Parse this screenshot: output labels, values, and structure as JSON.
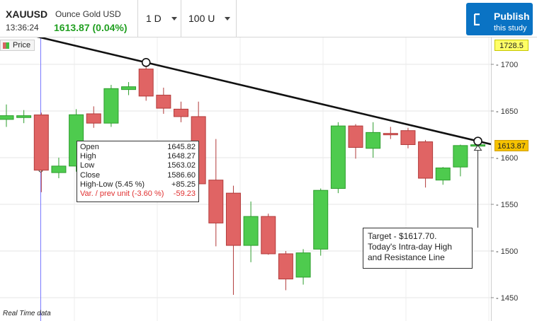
{
  "header": {
    "symbol": "XAUUSD",
    "instrument": "Ounce Gold USD",
    "time": "13:36:24",
    "price": "1613.87 (0.04%)",
    "price_color": "#22a022",
    "interval": "1 D",
    "units": "100 U",
    "publish": {
      "line1": "Publish",
      "line2": "this study",
      "color": "#0a73c4"
    }
  },
  "legend": {
    "label": "Price"
  },
  "footer": {
    "note": "Real Time data"
  },
  "price_tags": {
    "high": "1728.5",
    "last": "1613.87"
  },
  "ohlc": {
    "rows": [
      {
        "label": "Open",
        "value": "1645.82"
      },
      {
        "label": "High",
        "value": "1648.27"
      },
      {
        "label": "Low",
        "value": "1563.02"
      },
      {
        "label": "Close",
        "value": "1586.60"
      },
      {
        "label": "High-Low (5.45 %)",
        "value": "+85.25"
      },
      {
        "label": "Var. / prev unit (-3.60 %)",
        "value": "-59.23"
      }
    ]
  },
  "annotation": {
    "lines": [
      "Target - $1617.70.",
      "Today's Intra-day High",
      "and Resistance Line"
    ]
  },
  "chart_data": {
    "type": "candlestick",
    "ylim": [
      1430,
      1730
    ],
    "yticks": [
      1450,
      1500,
      1550,
      1600,
      1650,
      1700
    ],
    "grid": true,
    "colors": {
      "up": "#4ecb4e",
      "down": "#e06464",
      "trend_line": "#111111"
    },
    "candles": [
      {
        "o": 1641,
        "h": 1657,
        "l": 1633,
        "c": 1645
      },
      {
        "o": 1643,
        "h": 1651,
        "l": 1637,
        "c": 1645
      },
      {
        "o": 1645.82,
        "h": 1648.27,
        "l": 1563.02,
        "c": 1586.6
      },
      {
        "o": 1584,
        "h": 1600,
        "l": 1578,
        "c": 1591
      },
      {
        "o": 1591,
        "h": 1652,
        "l": 1585,
        "c": 1646
      },
      {
        "o": 1647,
        "h": 1655,
        "l": 1632,
        "c": 1637
      },
      {
        "o": 1637,
        "h": 1678,
        "l": 1633,
        "c": 1674
      },
      {
        "o": 1673,
        "h": 1681,
        "l": 1667,
        "c": 1676
      },
      {
        "o": 1695,
        "h": 1700,
        "l": 1661,
        "c": 1666
      },
      {
        "o": 1667,
        "h": 1675,
        "l": 1647,
        "c": 1653
      },
      {
        "o": 1652,
        "h": 1660,
        "l": 1638,
        "c": 1644
      },
      {
        "o": 1644,
        "h": 1660,
        "l": 1562,
        "c": 1572
      },
      {
        "o": 1576,
        "h": 1620,
        "l": 1505,
        "c": 1530
      },
      {
        "o": 1562,
        "h": 1570,
        "l": 1453,
        "c": 1506
      },
      {
        "o": 1506,
        "h": 1553,
        "l": 1488,
        "c": 1537
      },
      {
        "o": 1537,
        "h": 1540,
        "l": 1496,
        "c": 1497
      },
      {
        "o": 1497,
        "h": 1500,
        "l": 1458,
        "c": 1470
      },
      {
        "o": 1472,
        "h": 1502,
        "l": 1464,
        "c": 1498
      },
      {
        "o": 1502,
        "h": 1567,
        "l": 1495,
        "c": 1565
      },
      {
        "o": 1567,
        "h": 1638,
        "l": 1562,
        "c": 1634
      },
      {
        "o": 1634,
        "h": 1636,
        "l": 1599,
        "c": 1611
      },
      {
        "o": 1610,
        "h": 1638,
        "l": 1600,
        "c": 1627
      },
      {
        "o": 1626,
        "h": 1633,
        "l": 1620,
        "c": 1625
      },
      {
        "o": 1629,
        "h": 1632,
        "l": 1610,
        "c": 1614
      },
      {
        "o": 1617,
        "h": 1619,
        "l": 1568,
        "c": 1578
      },
      {
        "o": 1576,
        "h": 1590,
        "l": 1571,
        "c": 1589
      },
      {
        "o": 1590,
        "h": 1614,
        "l": 1580,
        "c": 1613
      },
      {
        "o": 1613.5,
        "h": 1617.7,
        "l": 1611,
        "c": 1613.87
      }
    ]
  }
}
